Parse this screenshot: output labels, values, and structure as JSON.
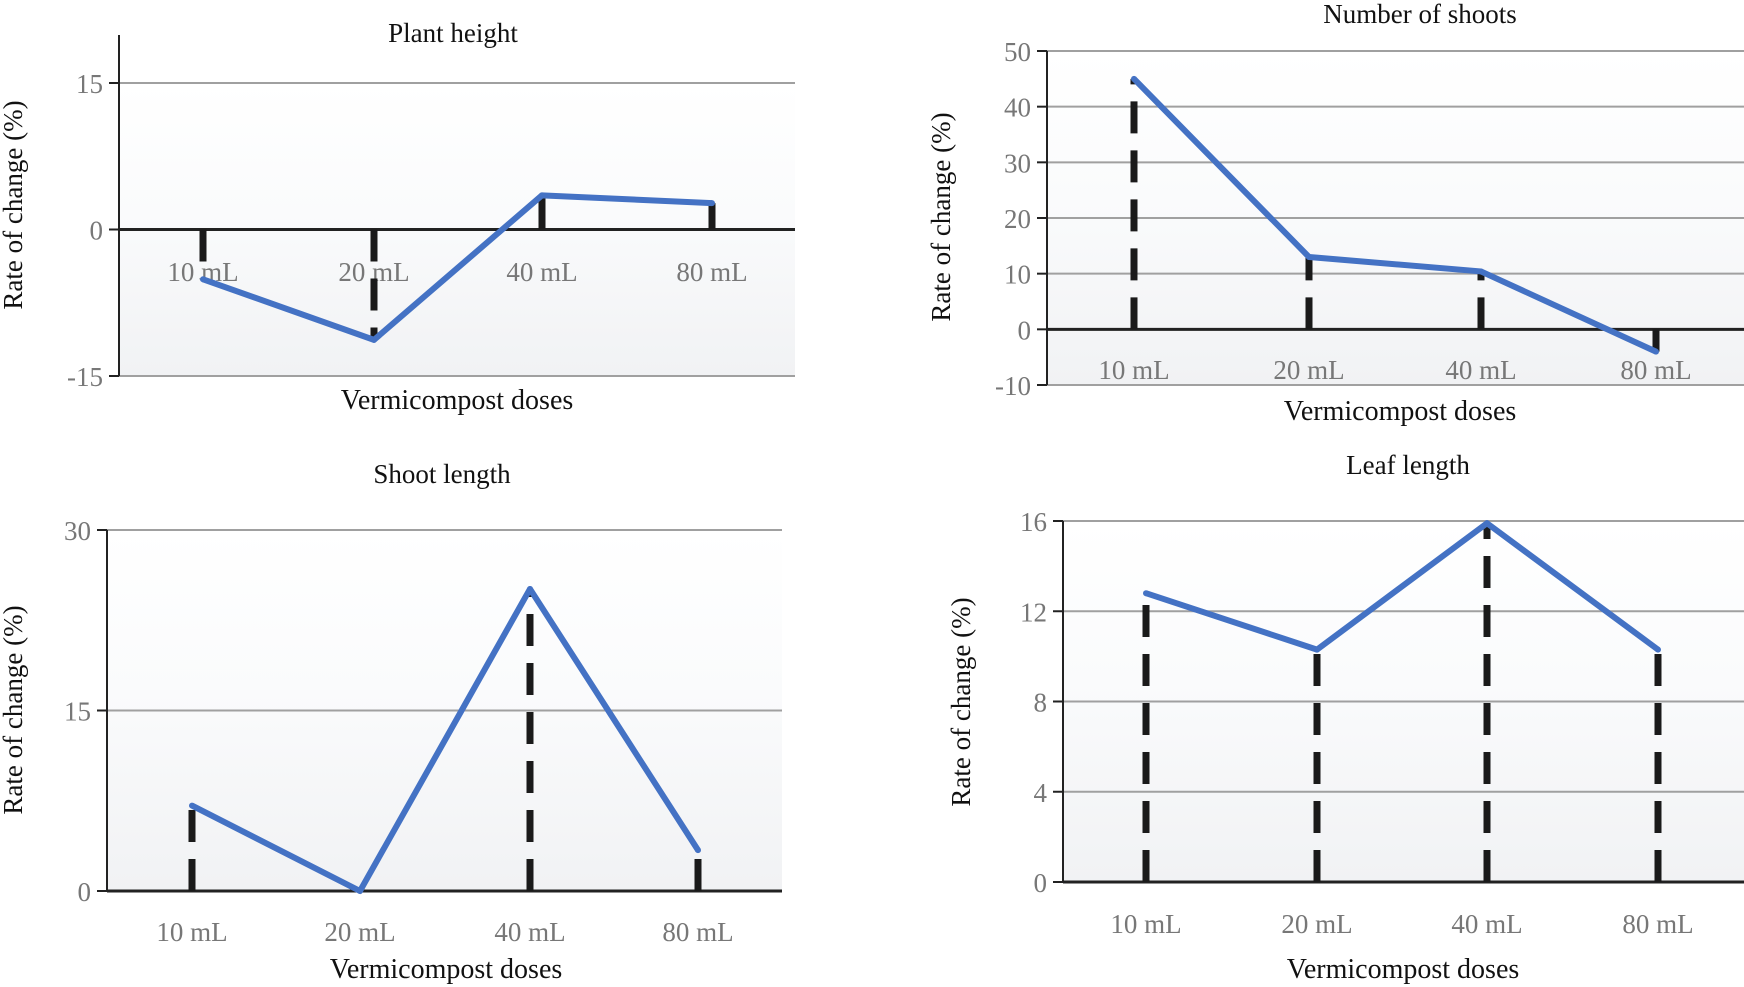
{
  "colors": {
    "line": "#4472c4",
    "drop": "#1a1a1a",
    "grid": "#a0a0a0",
    "axis": "#222222",
    "tick_text": "#777777",
    "bg_top": "#ffffff",
    "bg_bottom": "#f2f3f5"
  },
  "chart_data": [
    {
      "type": "line",
      "title": "Plant height",
      "xlabel": "Vermicompost doses",
      "ylabel": "Rate of change (%)",
      "categories": [
        "10 mL",
        "20 mL",
        "40 mL",
        "80 mL"
      ],
      "series": [
        {
          "name": "Rate of change",
          "values": [
            -5.1,
            -11.3,
            3.5,
            2.7
          ]
        }
      ],
      "ylim": [
        -15,
        15
      ],
      "yticks": [
        -15,
        0,
        15
      ],
      "ytick_labels": [
        "-15",
        "0",
        "15"
      ],
      "grid": true,
      "drop_lines": true
    },
    {
      "type": "line",
      "title": "Number of shoots",
      "xlabel": "Vermicompost doses",
      "ylabel": "Rate of change (%)",
      "categories": [
        "10 mL",
        "20 mL",
        "40 mL",
        "80 mL"
      ],
      "series": [
        {
          "name": "Rate of change",
          "values": [
            45,
            13,
            10.4,
            -4
          ]
        }
      ],
      "ylim": [
        -10,
        50
      ],
      "yticks": [
        -10,
        0,
        10,
        20,
        30,
        40,
        50
      ],
      "ytick_labels": [
        "-10",
        "0",
        "10",
        "20",
        "30",
        "40",
        "50"
      ],
      "grid": true,
      "drop_lines": true
    },
    {
      "type": "line",
      "title": "Shoot length",
      "xlabel": "Vermicompost doses",
      "ylabel": "Rate of change (%)",
      "categories": [
        "10 mL",
        "20 mL",
        "40 mL",
        "80 mL"
      ],
      "series": [
        {
          "name": "Rate of change",
          "values": [
            7.1,
            0,
            25.1,
            3.4
          ]
        }
      ],
      "ylim": [
        0,
        30
      ],
      "yticks": [
        0,
        15,
        30
      ],
      "ytick_labels": [
        "0",
        "15",
        "30"
      ],
      "grid": true,
      "drop_lines": true
    },
    {
      "type": "line",
      "title": "Leaf length",
      "xlabel": "Vermicompost doses",
      "ylabel": "Rate of change (%)",
      "categories": [
        "10 mL",
        "20 mL",
        "40 mL",
        "80 mL"
      ],
      "series": [
        {
          "name": "Rate of change",
          "values": [
            12.8,
            10.3,
            15.9,
            10.3
          ]
        }
      ],
      "ylim": [
        0,
        16
      ],
      "yticks": [
        0,
        4,
        8,
        12,
        16
      ],
      "ytick_labels": [
        "0",
        "4",
        "8",
        "12",
        "16"
      ],
      "grid": true,
      "drop_lines": true
    }
  ]
}
